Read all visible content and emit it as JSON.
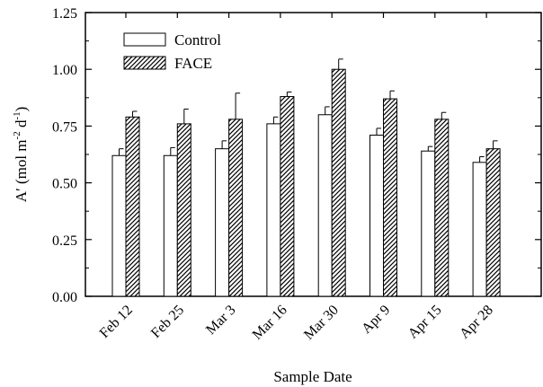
{
  "chart_data": {
    "type": "bar",
    "categories": [
      "Feb 12",
      "Feb 25",
      "Mar 3",
      "Mar 16",
      "Mar 30",
      "Apr 9",
      "Apr 15",
      "Apr 28"
    ],
    "series": [
      {
        "name": "Control",
        "values": [
          0.62,
          0.62,
          0.65,
          0.76,
          0.8,
          0.71,
          0.64,
          0.59
        ],
        "errors": [
          0.03,
          0.035,
          0.035,
          0.03,
          0.035,
          0.03,
          0.02,
          0.025
        ],
        "fill": "#ffffff",
        "pattern": "none"
      },
      {
        "name": "FACE",
        "values": [
          0.79,
          0.76,
          0.78,
          0.88,
          1.0,
          0.87,
          0.78,
          0.65
        ],
        "errors": [
          0.025,
          0.065,
          0.115,
          0.02,
          0.045,
          0.035,
          0.03,
          0.035
        ],
        "fill": "#ffffff",
        "pattern": "diagonal-hatch"
      }
    ],
    "xlabel": "Sample Date",
    "ylabel_main": "A′ (mol m",
    "ylabel_sup1": "-2",
    "ylabel_mid": " d",
    "ylabel_sup2": "-1",
    "ylabel_end": ")",
    "ylim": [
      0,
      1.25
    ],
    "yticks": [
      "0.00",
      "0.25",
      "0.50",
      "0.75",
      "1.00",
      "1.25"
    ],
    "legend_position": "top-left",
    "grid": false
  }
}
